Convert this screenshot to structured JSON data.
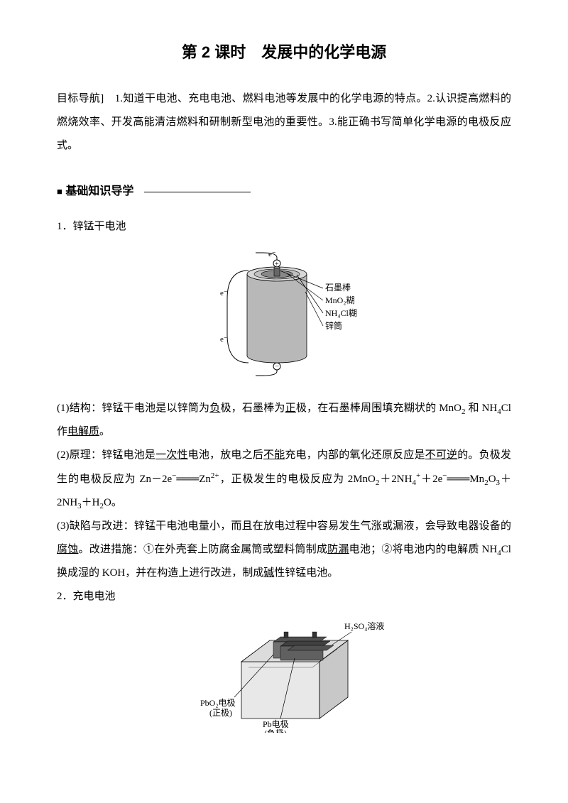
{
  "title": "第 2 课时　发展中的化学电源",
  "intro": "目标导航]　1.知道干电池、充电电池、燃料电池等发展中的化学电源的特点。2.认识提高燃料的燃烧效率、开发高能清洁燃料和研制新型电池的重要性。3.能正确书写简单化学电源的电极反应式。",
  "section_header": "基础知识导学",
  "sub1": {
    "heading": "1．锌锰干电池",
    "diagram": {
      "label_top": "e⁻",
      "label_graphite": "石墨棒",
      "label_mno2": "MnO₂糊",
      "label_nh4cl": "NH₄Cl糊",
      "label_zn": "锌筒",
      "label_e_left": "e⁻",
      "colors": {
        "outer": "#b8b8b8",
        "outer_light": "#d8d8d8",
        "inner1": "#888888",
        "inner2": "#c0c0c0",
        "rod": "#666666",
        "stroke": "#000000"
      }
    },
    "para1_pre": "(1)结构：锌锰干电池是以锌筒为",
    "para1_u1": "负",
    "para1_mid1": "极，石墨棒为",
    "para1_u2": "正",
    "para1_mid2": "极，在石墨棒周围填充糊状的 MnO",
    "para1_sub1": "2",
    "para1_mid3": " 和 NH",
    "para1_sub2": "4",
    "para1_mid4": "Cl 作",
    "para1_u3": "电解质",
    "para1_end": "。",
    "para2": "(2)原理：锌锰电池是|一次性|电池，放电之后|不能|充电，内部的氧化还原反应是|不可逆|的。负极发生的电极反应为 Zn－2e⁻══Zn²⁺，正极发生的电极反应为 2MnO₂＋2NH₄⁺＋2e⁻══Mn₂O₃＋2NH₃＋H₂O。",
    "para3": "(3)缺陷与改进：锌锰干电池电量小，而且在放电过程中容易发生气涨或漏液，会导致电器设备的|腐蚀|。改进措施：①在外壳套上防腐金属筒或塑料筒制成|防漏|电池；②将电池内的电解质 NH₄Cl 换成湿的 KOH，并在构造上进行改进，制成|碱|性锌锰电池。"
  },
  "sub2": {
    "heading": "2．充电电池",
    "diagram": {
      "label_h2so4": "H₂SO₄溶液",
      "label_pbo2": "PbO₂电极",
      "label_pbo2_sub": "(正极)",
      "label_pb": "Pb电极",
      "label_pb_sub": "(负极)",
      "colors": {
        "box_light": "#e8e8e8",
        "box_dark": "#c8c8c8",
        "plate_dark": "#505050",
        "plate_light": "#a0a0a0",
        "stroke": "#000000"
      }
    }
  }
}
